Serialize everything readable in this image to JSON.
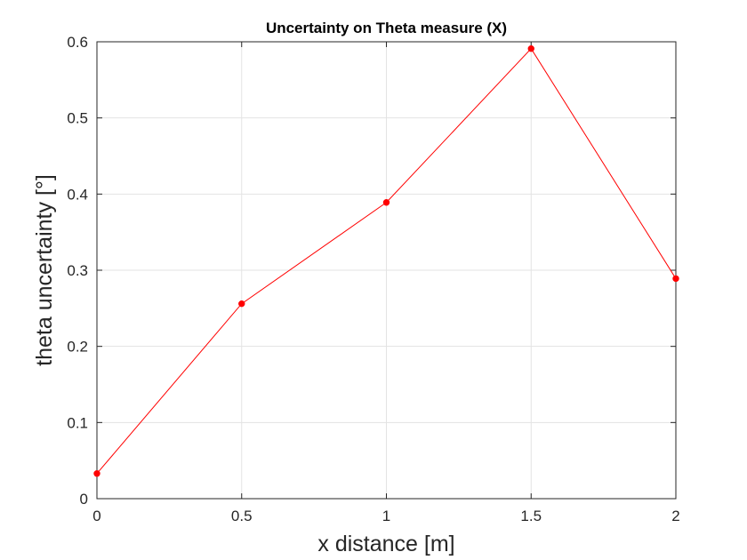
{
  "chart_data": {
    "type": "line",
    "title": "Uncertainty on Theta measure (X)",
    "xlabel": "x distance [m]",
    "ylabel": "theta uncertainty [°]",
    "xlim": [
      0,
      2
    ],
    "ylim": [
      0,
      0.6
    ],
    "xticks": [
      "0",
      "0.5",
      "1",
      "1.5",
      "2"
    ],
    "yticks": [
      "0",
      "0.1",
      "0.2",
      "0.3",
      "0.4",
      "0.5",
      "0.6"
    ],
    "grid": true,
    "series": [
      {
        "color": "#ff0000",
        "marker": "dot",
        "x": [
          0,
          0.5,
          1,
          1.5,
          2
        ],
        "y": [
          0.033,
          0.256,
          0.389,
          0.591,
          0.289
        ]
      }
    ]
  }
}
